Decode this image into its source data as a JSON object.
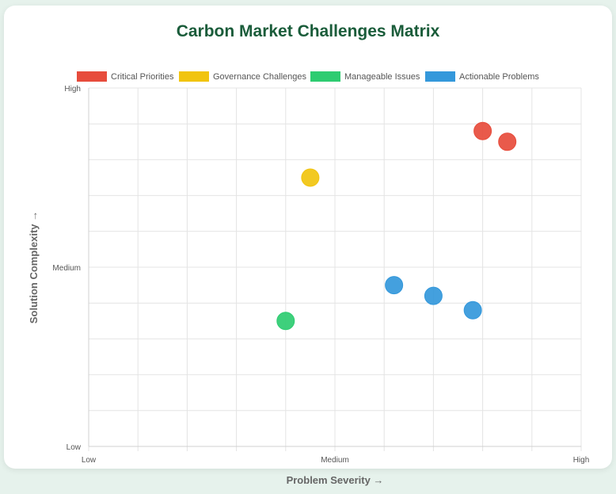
{
  "title": "Carbon Market Challenges Matrix",
  "chart_data": {
    "type": "scatter",
    "title": "Carbon Market Challenges Matrix",
    "xlabel": "Problem Severity →",
    "ylabel": "Solution Complexity →",
    "xlim": [
      0,
      10
    ],
    "ylim": [
      0,
      10
    ],
    "x_ticks": [
      {
        "value": 0,
        "label": "Low"
      },
      {
        "value": 5,
        "label": "Medium"
      },
      {
        "value": 10,
        "label": "High"
      }
    ],
    "y_ticks": [
      {
        "value": 0,
        "label": "Low"
      },
      {
        "value": 5,
        "label": "Medium"
      },
      {
        "value": 10,
        "label": "High"
      }
    ],
    "grid": true,
    "legend_position": "top",
    "series": [
      {
        "name": "Critical Priorities",
        "color": "#e74c3c",
        "points": [
          {
            "x": 8.0,
            "y": 8.8
          },
          {
            "x": 8.5,
            "y": 8.5
          }
        ]
      },
      {
        "name": "Governance Challenges",
        "color": "#f1c40f",
        "points": [
          {
            "x": 4.5,
            "y": 7.5
          }
        ]
      },
      {
        "name": "Manageable Issues",
        "color": "#2ecc71",
        "points": [
          {
            "x": 4.0,
            "y": 3.5
          }
        ]
      },
      {
        "name": "Actionable Problems",
        "color": "#3498db",
        "points": [
          {
            "x": 6.2,
            "y": 4.5
          },
          {
            "x": 7.0,
            "y": 4.2
          },
          {
            "x": 7.8,
            "y": 3.8
          }
        ]
      }
    ]
  }
}
